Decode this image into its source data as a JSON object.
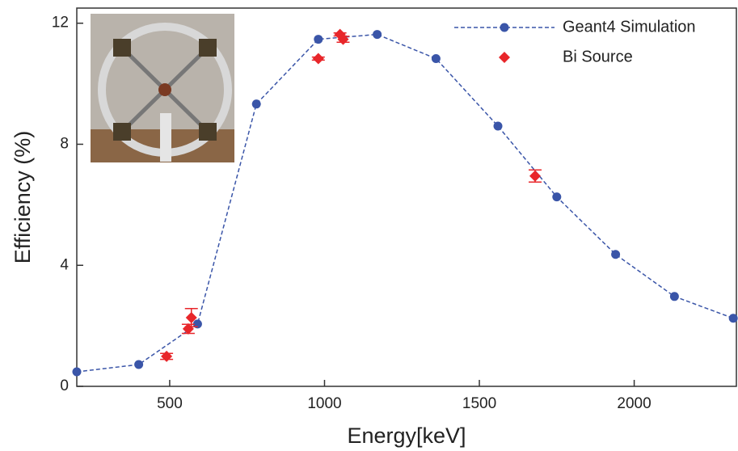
{
  "chart_data": {
    "type": "line",
    "x_label": "Energy[keV]",
    "y_label": "Efficiency (%)",
    "xlim": [
      200,
      2330
    ],
    "ylim": [
      0,
      12.5
    ],
    "xticks": [
      500,
      1000,
      1500,
      2000
    ],
    "yticks": [
      0,
      4,
      8,
      12
    ],
    "legend": "upper right",
    "series": [
      {
        "name": "Geant4 Simulation",
        "color": "#3a55a8",
        "style": "dashed-line-markers",
        "x": [
          200,
          400,
          590,
          780,
          980,
          1170,
          1360,
          1560,
          1750,
          1940,
          2130,
          2320
        ],
        "values": [
          0.48,
          0.72,
          2.06,
          9.33,
          11.47,
          11.63,
          10.83,
          8.6,
          6.26,
          4.36,
          2.97,
          2.25
        ]
      },
      {
        "name": "Bi Source",
        "color": "#e8262a",
        "style": "diamond-errorbars",
        "x": [
          490,
          560,
          570,
          980,
          1050,
          1060,
          1680
        ],
        "values": [
          0.99,
          1.9,
          2.27,
          10.83,
          11.63,
          11.47,
          6.95
        ],
        "errors": [
          0.1,
          0.15,
          0.3,
          0.05,
          0.05,
          0.1,
          0.2
        ]
      }
    ]
  }
}
